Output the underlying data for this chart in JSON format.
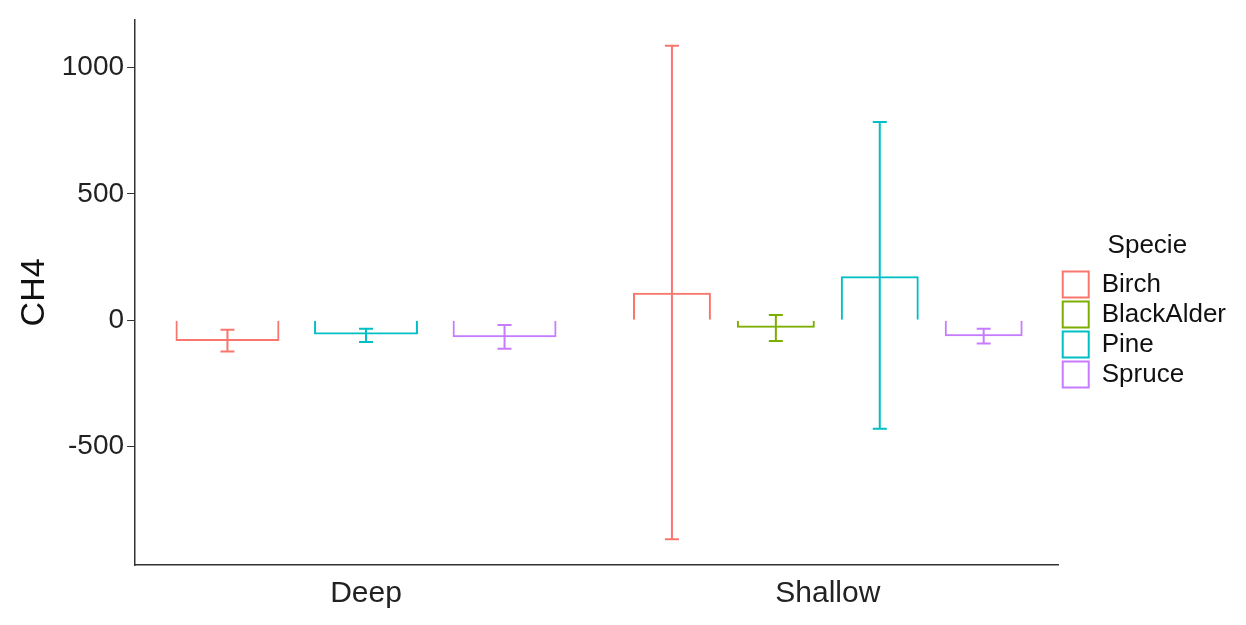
{
  "chart_data": {
    "type": "bar",
    "ylabel": "CH4",
    "legend_title": "Specie",
    "legend": "right",
    "grid": false,
    "categories": [
      "Deep",
      "Shallow"
    ],
    "ylim": [
      -970,
      1190
    ],
    "yticks": [
      -500,
      0,
      500,
      1000
    ],
    "series": [
      {
        "name": "Birch",
        "color": "#f8766d",
        "values": [
          -83,
          109
        ],
        "errors": [
          [
            -124,
            -38
          ],
          [
            -868,
            1087
          ]
        ]
      },
      {
        "name": "BlackAlder",
        "color": "#7cae00",
        "values": [
          null,
          -30
        ],
        "errors": [
          null,
          [
            -83,
            20
          ]
        ]
      },
      {
        "name": "Pine",
        "color": "#00bfc4",
        "values": [
          -57,
          174
        ],
        "errors": [
          [
            -87,
            -34
          ],
          [
            -430,
            785
          ]
        ]
      },
      {
        "name": "Spruce",
        "color": "#c77cff",
        "values": [
          -68,
          -64
        ],
        "errors": [
          [
            -113,
            -19
          ],
          [
            -92,
            -34
          ]
        ]
      }
    ]
  }
}
